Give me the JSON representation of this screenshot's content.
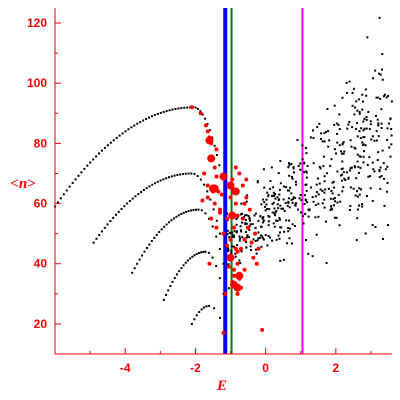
{
  "chart_data": {
    "type": "scatter",
    "xlabel": "E",
    "ylabel": "<n>",
    "xlim": [
      -6,
      3.6
    ],
    "ylim": [
      10,
      125
    ],
    "xticks": [
      -4,
      -2,
      0,
      2
    ],
    "yticks": [
      20,
      40,
      60,
      80,
      100,
      120
    ],
    "grid": false,
    "colors": {
      "axis": "#ff0000",
      "points_black": "#000000",
      "points_red": "#ff0000",
      "line_blue": "#0000ff",
      "line_green": "#008000",
      "line_magenta": "#ff00ff"
    },
    "vertical_lines": [
      {
        "x": -1.15,
        "color": "#0000ff",
        "width": 4
      },
      {
        "x": -0.97,
        "color": "#008000",
        "width": 2
      },
      {
        "x": 1.05,
        "color": "#ff00ff",
        "width": 2
      }
    ],
    "branches": [
      {
        "x0": -6.0,
        "y0": 59,
        "xp": -2.05,
        "yp": 92,
        "x1": -1.25,
        "y1": 69,
        "n": 60
      },
      {
        "x0": -4.9,
        "y0": 47,
        "xp": -2.1,
        "yp": 70,
        "x1": -1.3,
        "y1": 50,
        "n": 45
      },
      {
        "x0": -3.8,
        "y0": 37,
        "xp": -1.9,
        "yp": 58,
        "x1": -1.2,
        "y1": 40,
        "n": 35
      },
      {
        "x0": -2.9,
        "y0": 28,
        "xp": -1.7,
        "yp": 44,
        "x1": -1.2,
        "y1": 30,
        "n": 25
      },
      {
        "x0": -2.1,
        "y0": 20,
        "xp": -1.6,
        "yp": 26,
        "x1": -1.3,
        "y1": 22,
        "n": 10
      }
    ],
    "red_points": [
      [
        -2.1,
        92
      ],
      [
        -1.85,
        90
      ],
      [
        -1.65,
        84
      ],
      [
        -1.55,
        80
      ],
      [
        -1.5,
        75
      ],
      [
        -1.45,
        72
      ],
      [
        -1.4,
        78
      ],
      [
        -1.7,
        86
      ],
      [
        -1.6,
        82
      ],
      [
        -1.75,
        70
      ],
      [
        -1.65,
        66
      ],
      [
        -1.5,
        64
      ],
      [
        -1.4,
        69
      ],
      [
        -1.35,
        64
      ],
      [
        -1.45,
        60
      ],
      [
        -1.55,
        55
      ],
      [
        -1.4,
        52
      ],
      [
        -1.3,
        57
      ],
      [
        -1.2,
        50
      ],
      [
        -1.1,
        55
      ],
      [
        -1.0,
        62
      ],
      [
        -0.95,
        65
      ],
      [
        -0.85,
        60
      ],
      [
        -0.8,
        56
      ],
      [
        -0.9,
        52
      ],
      [
        -1.0,
        48
      ],
      [
        -0.85,
        45
      ],
      [
        -0.8,
        40
      ],
      [
        -0.9,
        38
      ],
      [
        -0.95,
        34
      ],
      [
        -0.85,
        33
      ],
      [
        -0.75,
        35
      ],
      [
        -0.7,
        32
      ],
      [
        -0.8,
        30
      ],
      [
        -0.9,
        36
      ],
      [
        -1.0,
        42
      ],
      [
        -1.1,
        46
      ],
      [
        -0.7,
        45
      ],
      [
        -0.6,
        48
      ],
      [
        -0.5,
        52
      ],
      [
        -0.45,
        58
      ],
      [
        -0.55,
        62
      ],
      [
        -0.65,
        66
      ],
      [
        -0.75,
        70
      ],
      [
        -0.85,
        72
      ],
      [
        -0.95,
        68
      ],
      [
        -0.4,
        47
      ],
      [
        -0.3,
        50
      ],
      [
        -0.2,
        45
      ],
      [
        -0.35,
        42
      ],
      [
        -0.25,
        40
      ],
      [
        -0.6,
        38
      ],
      [
        -0.7,
        36
      ],
      [
        -1.25,
        63
      ],
      [
        -1.3,
        58
      ],
      [
        -1.8,
        61
      ],
      [
        -1.65,
        62
      ],
      [
        -0.9,
        64
      ],
      [
        -0.8,
        44
      ],
      [
        -1.05,
        39
      ],
      [
        -0.65,
        55
      ],
      [
        -0.6,
        60
      ],
      [
        -0.55,
        68
      ],
      [
        -0.1,
        18
      ],
      [
        -1.2,
        17
      ],
      [
        -1.6,
        40
      ],
      [
        -1.15,
        30
      ]
    ],
    "red_big_points": [
      [
        -1.6,
        81
      ],
      [
        -1.55,
        75
      ],
      [
        -1.45,
        65
      ],
      [
        -1.5,
        65
      ],
      [
        -1.0,
        66
      ],
      [
        -0.85,
        64
      ],
      [
        -0.95,
        56
      ],
      [
        -0.9,
        33
      ],
      [
        -0.8,
        32
      ],
      [
        -0.75,
        36
      ],
      [
        -1.0,
        42
      ],
      [
        -1.2,
        69
      ]
    ]
  }
}
